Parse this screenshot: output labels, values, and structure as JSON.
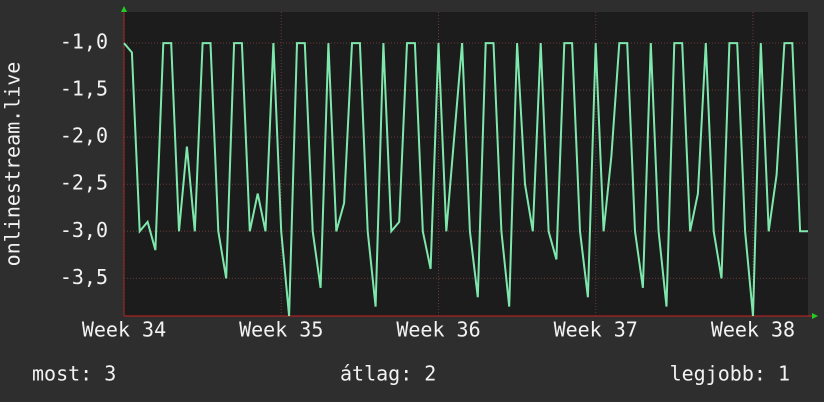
{
  "chart_data": {
    "type": "line",
    "y_label": "onlinestream.live",
    "color": "#7ee8ac",
    "grid": true,
    "xlim": [
      34,
      38.35
    ],
    "xticks": [
      {
        "value": 34,
        "label": "Week 34"
      },
      {
        "value": 35,
        "label": "Week 35"
      },
      {
        "value": 36,
        "label": "Week 36"
      },
      {
        "value": 37,
        "label": "Week 37"
      },
      {
        "value": 38,
        "label": "Week 38"
      }
    ],
    "ylim": [
      -3.9,
      -0.67
    ],
    "yticks": [
      {
        "value": -1,
        "label": "-1,0"
      },
      {
        "value": -1.5,
        "label": "-1,5"
      },
      {
        "value": -2,
        "label": "-2,0"
      },
      {
        "value": -2.5,
        "label": "-2,5"
      },
      {
        "value": -3,
        "label": "-3,0"
      },
      {
        "value": -3.5,
        "label": "-3,5"
      }
    ],
    "x": [
      34,
      34.05,
      34.1,
      34.15,
      34.2,
      34.25,
      34.3,
      34.35,
      34.4,
      34.45,
      34.5,
      34.55,
      34.6,
      34.65,
      34.7,
      34.75,
      34.8,
      34.85,
      34.9,
      34.95,
      35,
      35.05,
      35.1,
      35.15,
      35.2,
      35.25,
      35.3,
      35.35,
      35.4,
      35.45,
      35.5,
      35.55,
      35.6,
      35.65,
      35.7,
      35.75,
      35.8,
      35.85,
      35.9,
      35.95,
      36,
      36.05,
      36.1,
      36.15,
      36.2,
      36.25,
      36.3,
      36.35,
      36.4,
      36.45,
      36.5,
      36.55,
      36.6,
      36.65,
      36.7,
      36.75,
      36.8,
      36.85,
      36.9,
      36.95,
      37,
      37.05,
      37.1,
      37.15,
      37.2,
      37.25,
      37.3,
      37.35,
      37.4,
      37.45,
      37.5,
      37.55,
      37.6,
      37.65,
      37.7,
      37.75,
      37.8,
      37.85,
      37.9,
      37.95,
      38,
      38.05,
      38.1,
      38.15,
      38.2,
      38.25,
      38.3,
      38.35
    ],
    "values": [
      -1,
      -1.1,
      -3,
      -2.9,
      -3.2,
      -1,
      -1,
      -3,
      -2.1,
      -3,
      -1,
      -1,
      -3,
      -3.5,
      -1,
      -1,
      -3,
      -2.6,
      -3,
      -1,
      -3,
      -3.9,
      -1,
      -1,
      -3,
      -3.6,
      -1,
      -3,
      -2.7,
      -1,
      -1,
      -3,
      -3.8,
      -1,
      -3,
      -2.9,
      -1,
      -1,
      -3,
      -3.4,
      -1,
      -3,
      -2,
      -1,
      -3,
      -3.7,
      -1,
      -1,
      -3,
      -3.8,
      -1,
      -2.5,
      -3,
      -1,
      -3,
      -3.3,
      -1,
      -1,
      -3,
      -3.7,
      -1,
      -3,
      -2.2,
      -1,
      -1,
      -3,
      -3.6,
      -1,
      -3,
      -3.8,
      -1,
      -1,
      -3,
      -2.6,
      -1,
      -3,
      -3.5,
      -1,
      -1,
      -3,
      -3.9,
      -1,
      -3,
      -2.4,
      -1,
      -1,
      -3,
      -3
    ],
    "legend": [
      "most: 3",
      "átlag: 2",
      "legjobb: 1"
    ]
  }
}
